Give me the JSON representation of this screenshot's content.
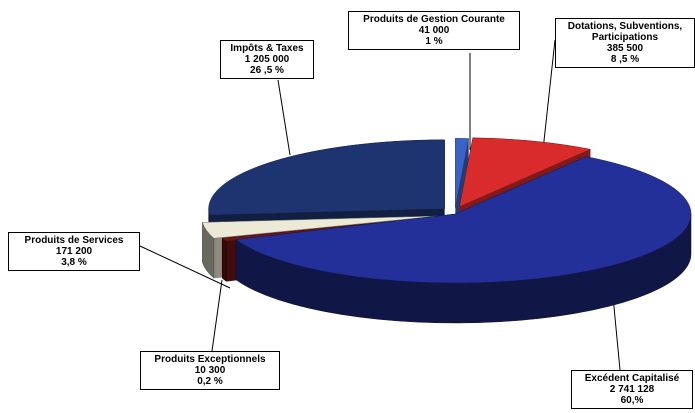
{
  "chart_data": {
    "type": "pie",
    "style": "3d-exploded",
    "title": "",
    "slices": [
      {
        "name": "Produits de Gestion Courante",
        "value": 41000,
        "value_label": "41 000",
        "percent": 1,
        "percent_label": "1 %",
        "color": "#3a62c8"
      },
      {
        "name": "Dotations, Subventions, Participations",
        "value": 385500,
        "value_label": "385  500",
        "percent": 8.5,
        "percent_label": "8 ,5  %",
        "color": "#d92b2b"
      },
      {
        "name": "Excédent Capitalisé",
        "value": 2741128,
        "value_label": "2 741 128",
        "percent": 60,
        "percent_label": "60,%",
        "color": "#23309a"
      },
      {
        "name": "Produits Exceptionnels",
        "value": 10300,
        "value_label": "10 300",
        "percent": 0.2,
        "percent_label": "0,2 %",
        "color": "#6e1414"
      },
      {
        "name": "Produits de Services",
        "value": 171200,
        "value_label": "171 200",
        "percent": 3.8,
        "percent_label": "3,8 %",
        "color": "#ece9d6"
      },
      {
        "name": "Impôts & Taxes",
        "value": 1205000,
        "value_label": "1 205 000",
        "percent": 26.5,
        "percent_label": "26 ,5  %",
        "color": "#1d3470"
      }
    ]
  },
  "labels": {
    "gestion": {
      "l1": "Produits de Gestion Courante",
      "l2": "41 000",
      "l3": "1 %"
    },
    "dotations": {
      "l1": "Dotations, Subventions,",
      "l1b": "Participations",
      "l2": "385  500",
      "l3": "8 ,5  %"
    },
    "impots": {
      "l1": "Impôts & Taxes",
      "l2": "1 205 000",
      "l3": "26 ,5  %"
    },
    "services": {
      "l1": "Produits de Services",
      "l2": "171 200",
      "l3": "3,8 %"
    },
    "exceptionnels": {
      "l1": "Produits Exceptionnels",
      "l2": "10 300",
      "l3": "0,2 %"
    },
    "excedent": {
      "l1": "Excédent Capitalisé",
      "l2": "2 741 128",
      "l3": "60,%"
    }
  }
}
